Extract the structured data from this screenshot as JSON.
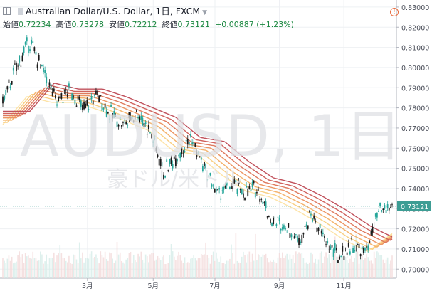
{
  "header": {
    "title": "Australian Dollar/U.S. Dollar, 1日, FXCM",
    "open_label": "始値",
    "open": "0.72234",
    "high_label": "高値",
    "high": "0.73278",
    "low_label": "安値",
    "low": "0.72212",
    "close_label": "終値",
    "close": "0.73121",
    "change": "+0.00887 (+1.23%)",
    "warning_icon": "!"
  },
  "watermark": {
    "symbol": "AUDUSD, 1日",
    "name": "豪ドル/米ドル"
  },
  "colors": {
    "up": "#26a69a",
    "down": "#1a1a1a",
    "price_line": "#3d9d94",
    "price_label_bg": "#3d9d94",
    "ma_ribbon": [
      "#fde3a7",
      "#f9cf83",
      "#f4b26b",
      "#ec9563",
      "#df7a5e",
      "#d0625d",
      "#c0505b"
    ]
  },
  "chart_data": {
    "type": "line",
    "title": "Australian Dollar/U.S. Dollar, 1日, FXCM",
    "xlabel": "",
    "ylabel": "",
    "x_ticks": [
      "3月",
      "5月",
      "7月",
      "9月",
      "11月"
    ],
    "y_ticks": [
      "0.83000",
      "0.82000",
      "0.81000",
      "0.80000",
      "0.79000",
      "0.78000",
      "0.77000",
      "0.76000",
      "0.75000",
      "0.74000",
      "0.73000",
      "0.72000",
      "0.71000",
      "0.70000"
    ],
    "ylim": [
      0.6955,
      0.8335
    ],
    "current_price": "0.73121",
    "grid": true,
    "price_path": [
      {
        "x": "1月初",
        "y": 0.783
      },
      {
        "x": "1月中",
        "y": 0.8
      },
      {
        "x": "1月末",
        "y": 0.813
      },
      {
        "x": "2月初",
        "y": 0.798
      },
      {
        "x": "2月中",
        "y": 0.783
      },
      {
        "x": "2月末",
        "y": 0.789
      },
      {
        "x": "3月初",
        "y": 0.779
      },
      {
        "x": "3月中",
        "y": 0.787
      },
      {
        "x": "3月末",
        "y": 0.777
      },
      {
        "x": "4月初",
        "y": 0.772
      },
      {
        "x": "4月中",
        "y": 0.778
      },
      {
        "x": "5月初",
        "y": 0.768
      },
      {
        "x": "5月中",
        "y": 0.748
      },
      {
        "x": "5月末",
        "y": 0.757
      },
      {
        "x": "6月中",
        "y": 0.765
      },
      {
        "x": "6月末",
        "y": 0.75
      },
      {
        "x": "7月初",
        "y": 0.737
      },
      {
        "x": "7月中",
        "y": 0.742
      },
      {
        "x": "7月末",
        "y": 0.738
      },
      {
        "x": "8月中",
        "y": 0.74
      },
      {
        "x": "8月末",
        "y": 0.724
      },
      {
        "x": "9月初",
        "y": 0.722
      },
      {
        "x": "9月中",
        "y": 0.714
      },
      {
        "x": "9月末",
        "y": 0.727
      },
      {
        "x": "10月初",
        "y": 0.714
      },
      {
        "x": "10月中",
        "y": 0.706
      },
      {
        "x": "10月末",
        "y": 0.712
      },
      {
        "x": "11月初",
        "y": 0.708
      },
      {
        "x": "11月中",
        "y": 0.728
      },
      {
        "x": "11月末",
        "y": 0.731
      }
    ],
    "ma_ribbon_path": [
      {
        "x": "1月初",
        "y": 0.775
      },
      {
        "x": "1月末",
        "y": 0.789
      },
      {
        "x": "2月中",
        "y": 0.786
      },
      {
        "x": "3月初",
        "y": 0.786
      },
      {
        "x": "3月末",
        "y": 0.782
      },
      {
        "x": "4月中",
        "y": 0.777
      },
      {
        "x": "5月初",
        "y": 0.772
      },
      {
        "x": "5月末",
        "y": 0.762
      },
      {
        "x": "6月中",
        "y": 0.76
      },
      {
        "x": "7月初",
        "y": 0.75
      },
      {
        "x": "7月末",
        "y": 0.742
      },
      {
        "x": "8月中",
        "y": 0.739
      },
      {
        "x": "9月初",
        "y": 0.733
      },
      {
        "x": "9月末",
        "y": 0.726
      },
      {
        "x": "10月中",
        "y": 0.718
      },
      {
        "x": "11月初",
        "y": 0.712
      },
      {
        "x": "11月末",
        "y": 0.721
      }
    ]
  }
}
